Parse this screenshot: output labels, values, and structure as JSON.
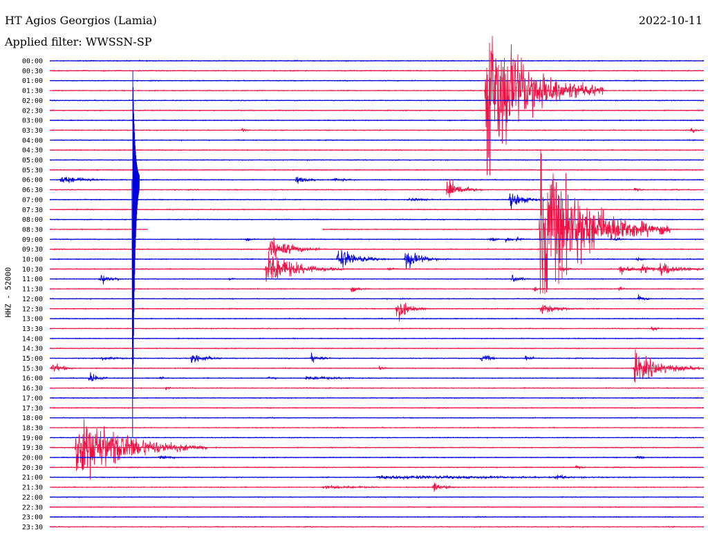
{
  "header": {
    "station": "HT Agios Georgios (Lamia)",
    "filter": "Applied filter: WWSSN-SP",
    "date": "2022-10-11"
  },
  "chart_data": {
    "type": "line",
    "title": "HT Agios Georgios (Lamia)",
    "subtitle": "Applied filter: WWSSN-SP",
    "ylabel": "HHZ - 52000",
    "xlabel": "",
    "time_labels": [
      "00:00",
      "00:30",
      "01:00",
      "01:30",
      "02:00",
      "02:30",
      "03:00",
      "03:30",
      "04:00",
      "04:30",
      "05:00",
      "05:30",
      "06:00",
      "06:30",
      "07:00",
      "07:30",
      "08:00",
      "08:30",
      "09:00",
      "09:30",
      "10:00",
      "10:30",
      "11:00",
      "11:30",
      "12:00",
      "12:30",
      "13:00",
      "13:30",
      "14:00",
      "14:30",
      "15:00",
      "15:30",
      "16:00",
      "16:30",
      "17:00",
      "17:30",
      "18:00",
      "18:30",
      "19:00",
      "19:30",
      "20:00",
      "20:30",
      "21:00",
      "21:30",
      "22:00",
      "22:30",
      "23:00",
      "23:30"
    ],
    "row_minutes": 30,
    "colors": {
      "even": "#0000dd",
      "odd": "#ee1144"
    },
    "gap": {
      "row": 17,
      "start_min": 4.5,
      "end_min": 12.5
    },
    "events": [
      {
        "row": 12,
        "t": 0.5,
        "a": 7,
        "d": 1.0
      },
      {
        "row": 12,
        "t": 11.3,
        "a": 7,
        "d": 0.5
      },
      {
        "row": 12,
        "t": 13.0,
        "a": 3,
        "d": 0.8
      },
      {
        "row": 7,
        "t": 8.8,
        "a": 3,
        "d": 0.3
      },
      {
        "row": 7,
        "t": 29.4,
        "a": 4,
        "d": 0.3
      },
      {
        "row": 3,
        "t": 20.0,
        "a": 110,
        "d": 1.8
      },
      {
        "row": 13,
        "t": 18.2,
        "a": 18,
        "d": 0.6
      },
      {
        "row": 13,
        "t": 26.8,
        "a": 4,
        "d": 0.3
      },
      {
        "row": 14,
        "t": 16.4,
        "a": 3,
        "d": 1.0
      },
      {
        "row": 14,
        "t": 21.1,
        "a": 14,
        "d": 0.6
      },
      {
        "row": 18,
        "t": 20.2,
        "a": 4,
        "d": 0.3
      },
      {
        "row": 18,
        "t": 20.9,
        "a": 5,
        "d": 0.3
      },
      {
        "row": 18,
        "t": 21.4,
        "a": 4,
        "d": 0.3
      },
      {
        "row": 18,
        "t": 25.9,
        "a": 4,
        "d": 0.3
      },
      {
        "row": 18,
        "t": 9.0,
        "a": 3,
        "d": 0.3
      },
      {
        "row": 17,
        "t": 22.5,
        "a": 110,
        "d": 2.0
      },
      {
        "row": 19,
        "t": 10.1,
        "a": 18,
        "d": 0.9
      },
      {
        "row": 20,
        "t": 13.2,
        "a": 18,
        "d": 0.8
      },
      {
        "row": 20,
        "t": 16.3,
        "a": 15,
        "d": 0.7
      },
      {
        "row": 20,
        "t": 26.9,
        "a": 3,
        "d": 0.3
      },
      {
        "row": 20,
        "t": 30.5,
        "a": 4,
        "d": 0.3
      },
      {
        "row": 21,
        "t": 9.9,
        "a": 28,
        "d": 1.2
      },
      {
        "row": 21,
        "t": 26.1,
        "a": 8,
        "d": 0.6
      },
      {
        "row": 21,
        "t": 27.1,
        "a": 8,
        "d": 0.5
      },
      {
        "row": 21,
        "t": 28.0,
        "a": 12,
        "d": 0.8
      },
      {
        "row": 21,
        "t": 15.5,
        "a": 3,
        "d": 0.4
      },
      {
        "row": 21,
        "t": 23.4,
        "a": 4,
        "d": 0.4
      },
      {
        "row": 22,
        "t": 2.3,
        "a": 8,
        "d": 0.5
      },
      {
        "row": 22,
        "t": 21.2,
        "a": 6,
        "d": 0.4
      },
      {
        "row": 22,
        "t": 8.2,
        "a": 3,
        "d": 0.3
      },
      {
        "row": 23,
        "t": 13.8,
        "a": 5,
        "d": 0.4
      },
      {
        "row": 23,
        "t": 26.1,
        "a": 4,
        "d": 0.3
      },
      {
        "row": 23,
        "t": 22.2,
        "a": 4,
        "d": 0.3
      },
      {
        "row": 24,
        "t": 27.0,
        "a": 5,
        "d": 0.3
      },
      {
        "row": 25,
        "t": 15.9,
        "a": 18,
        "d": 0.5
      },
      {
        "row": 25,
        "t": 22.5,
        "a": 9,
        "d": 0.8
      },
      {
        "row": 27,
        "t": 27.6,
        "a": 3,
        "d": 0.4
      },
      {
        "row": 30,
        "t": 6.5,
        "a": 9,
        "d": 0.6
      },
      {
        "row": 30,
        "t": 12.0,
        "a": 7,
        "d": 0.4
      },
      {
        "row": 30,
        "t": 19.8,
        "a": 7,
        "d": 0.4
      },
      {
        "row": 30,
        "t": 21.8,
        "a": 4,
        "d": 0.4
      },
      {
        "row": 30,
        "t": 31.0,
        "a": 6,
        "d": 0.6
      },
      {
        "row": 30,
        "t": 2.4,
        "a": 3,
        "d": 1.0
      },
      {
        "row": 31,
        "t": 0.1,
        "a": 8,
        "d": 0.5
      },
      {
        "row": 31,
        "t": 26.8,
        "a": 22,
        "d": 1.2
      },
      {
        "row": 31,
        "t": 15.1,
        "a": 3,
        "d": 0.3
      },
      {
        "row": 32,
        "t": 1.8,
        "a": 9,
        "d": 0.4
      },
      {
        "row": 32,
        "t": 11.7,
        "a": 3,
        "d": 2.0
      },
      {
        "row": 32,
        "t": 5.0,
        "a": 3,
        "d": 0.3
      },
      {
        "row": 32,
        "t": 10.0,
        "a": 3,
        "d": 0.4
      },
      {
        "row": 33,
        "t": 5.3,
        "a": 4,
        "d": 0.2
      },
      {
        "row": 39,
        "t": 1.2,
        "a": 56,
        "d": 2.0
      },
      {
        "row": 40,
        "t": 5.0,
        "a": 3,
        "d": 0.8
      },
      {
        "row": 40,
        "t": 26.9,
        "a": 4,
        "d": 0.3
      },
      {
        "row": 41,
        "t": 24.1,
        "a": 4,
        "d": 0.3
      },
      {
        "row": 42,
        "t": 15.0,
        "a": 3,
        "d": 8.0
      },
      {
        "row": 42,
        "t": 23.2,
        "a": 6,
        "d": 0.4
      },
      {
        "row": 43,
        "t": 12.5,
        "a": 3,
        "d": 2.0
      },
      {
        "row": 43,
        "t": 17.6,
        "a": 8,
        "d": 0.5
      },
      {
        "row": 46,
        "t": 30.4,
        "a": 3,
        "d": 1.0
      },
      {
        "row": 10,
        "t": 31.0,
        "a": 4,
        "d": 0.5
      }
    ],
    "spikes": [
      {
        "row": 12,
        "t": 3.8,
        "up": -172,
        "down": 372,
        "d": 2.0
      }
    ]
  }
}
